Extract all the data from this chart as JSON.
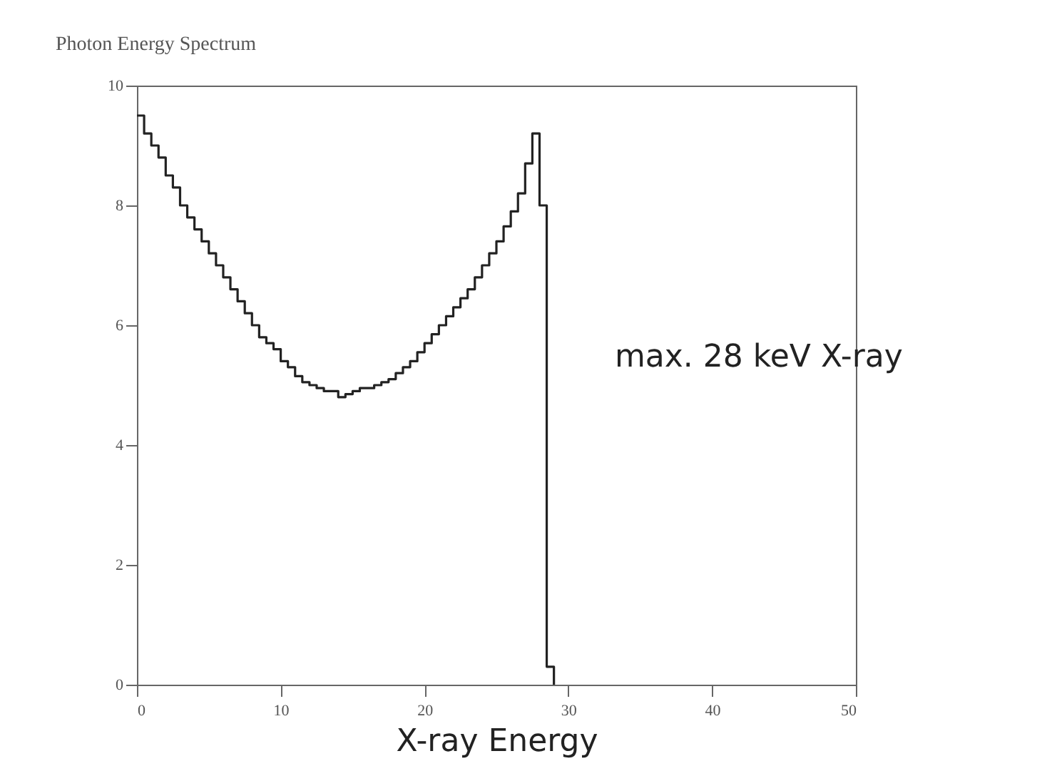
{
  "chart_data": {
    "type": "histogram",
    "title": "Photon Energy Spectrum",
    "xlabel": "X-ray Energy",
    "annotations": [
      "max. 28 keV X-ray"
    ],
    "bins": [
      0,
      0.5,
      1,
      1.5,
      2,
      2.5,
      3,
      3.5,
      4,
      4.5,
      5,
      5.5,
      6,
      6.5,
      7,
      7.5,
      8,
      8.5,
      9,
      9.5,
      10,
      10.5,
      11,
      11.5,
      12,
      12.5,
      13,
      13.5,
      14,
      14.5,
      15,
      15.5,
      16,
      16.5,
      17,
      17.5,
      18,
      18.5,
      19,
      19.5,
      20,
      20.5,
      21,
      21.5,
      22,
      22.5,
      23,
      23.5,
      24,
      24.5,
      25,
      25.5,
      26,
      26.5,
      27,
      27.5,
      28,
      28.5,
      29
    ],
    "values": [
      9.5,
      9.2,
      9.0,
      8.8,
      8.5,
      8.3,
      8.0,
      7.8,
      7.6,
      7.4,
      7.2,
      7.0,
      6.8,
      6.6,
      6.4,
      6.2,
      6.0,
      5.8,
      5.7,
      5.6,
      5.4,
      5.3,
      5.15,
      5.05,
      5.0,
      4.95,
      4.9,
      4.9,
      4.8,
      4.85,
      4.9,
      4.95,
      4.95,
      5.0,
      5.05,
      5.1,
      5.2,
      5.3,
      5.4,
      5.55,
      5.7,
      5.85,
      6.0,
      6.15,
      6.3,
      6.45,
      6.6,
      6.8,
      7.0,
      7.2,
      7.4,
      7.65,
      7.9,
      8.2,
      8.7,
      9.2,
      8.0,
      0.3
    ],
    "color": "#222222",
    "xlim": [
      0,
      50
    ],
    "xticks": [
      0,
      10,
      20,
      30,
      40,
      50
    ],
    "ylim": [
      0,
      10
    ],
    "yticks": [
      0,
      2,
      4,
      6,
      8,
      10
    ],
    "grid": false
  }
}
